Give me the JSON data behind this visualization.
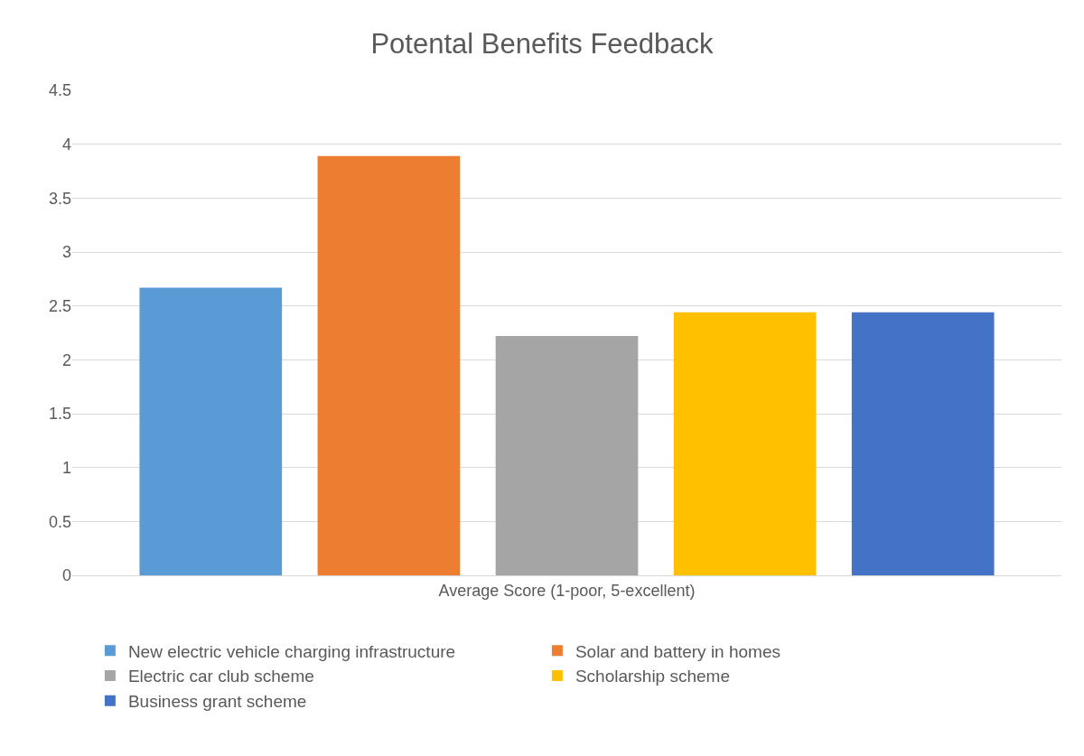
{
  "chart_data": {
    "type": "bar",
    "title": "Potental Benefits Feedback",
    "categories": [
      "Average Score (1-poor, 5-excellent)"
    ],
    "series": [
      {
        "name": "New electric vehicle charging infrastructure",
        "color": "#5b9bd5",
        "values": [
          2.67
        ]
      },
      {
        "name": "Solar and battery in homes",
        "color": "#ed7d31",
        "values": [
          3.89
        ]
      },
      {
        "name": "Electric car club scheme",
        "color": "#a5a5a5",
        "values": [
          2.22
        ]
      },
      {
        "name": "Scholarship scheme",
        "color": "#ffc000",
        "values": [
          2.44
        ]
      },
      {
        "name": "Business grant scheme",
        "color": "#4472c4",
        "values": [
          2.44
        ]
      }
    ],
    "ylim": [
      0,
      4.5
    ],
    "yticks": [
      0,
      0.5,
      1,
      1.5,
      2,
      2.5,
      3,
      3.5,
      4,
      4.5
    ],
    "grid": "y",
    "legend": "bottom"
  }
}
